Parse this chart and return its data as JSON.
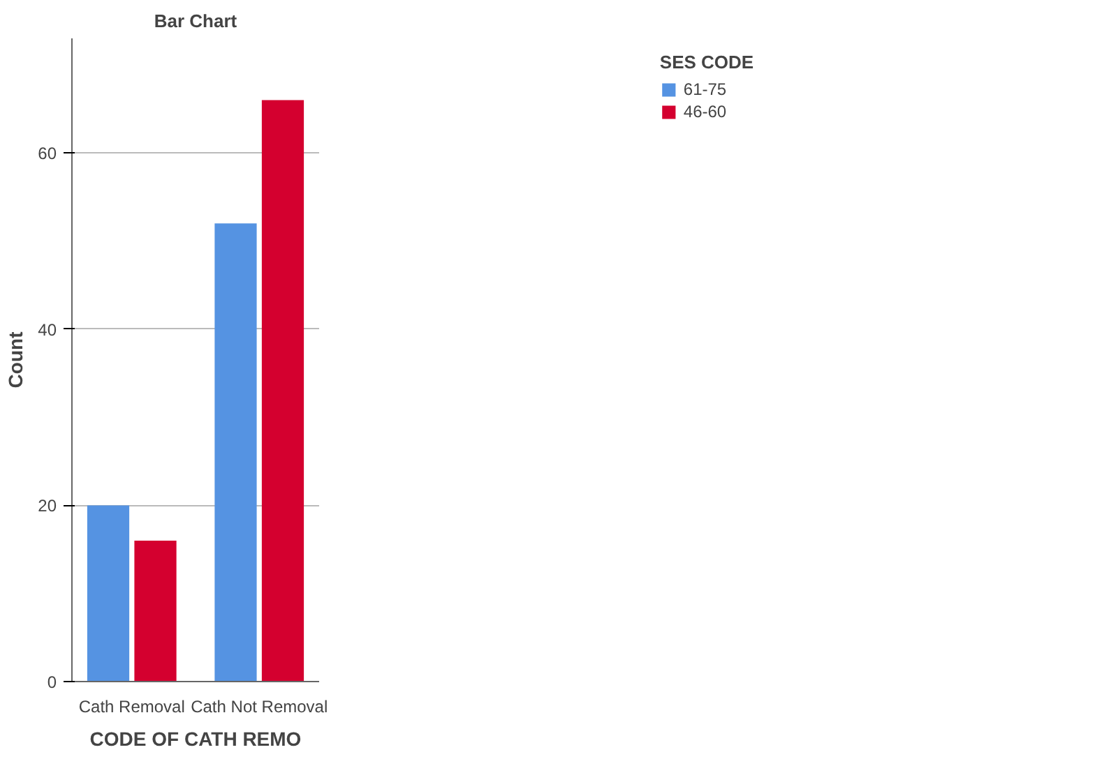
{
  "chart_data": {
    "type": "bar",
    "title": "Bar Chart",
    "xlabel": "CODE OF CATH REMO",
    "ylabel": "Count",
    "legend_title": "SES CODE",
    "categories": [
      "Cath Removal",
      "Cath Not Removal"
    ],
    "series": [
      {
        "name": "61-75",
        "color": "#5593e2",
        "values": [
          20,
          52
        ]
      },
      {
        "name": "46-60",
        "color": "#d4002f",
        "values": [
          16,
          66
        ]
      }
    ],
    "ylim": [
      0,
      73
    ],
    "yticks": [
      0,
      20,
      40,
      60
    ],
    "grid": "y",
    "legend": "top right"
  }
}
